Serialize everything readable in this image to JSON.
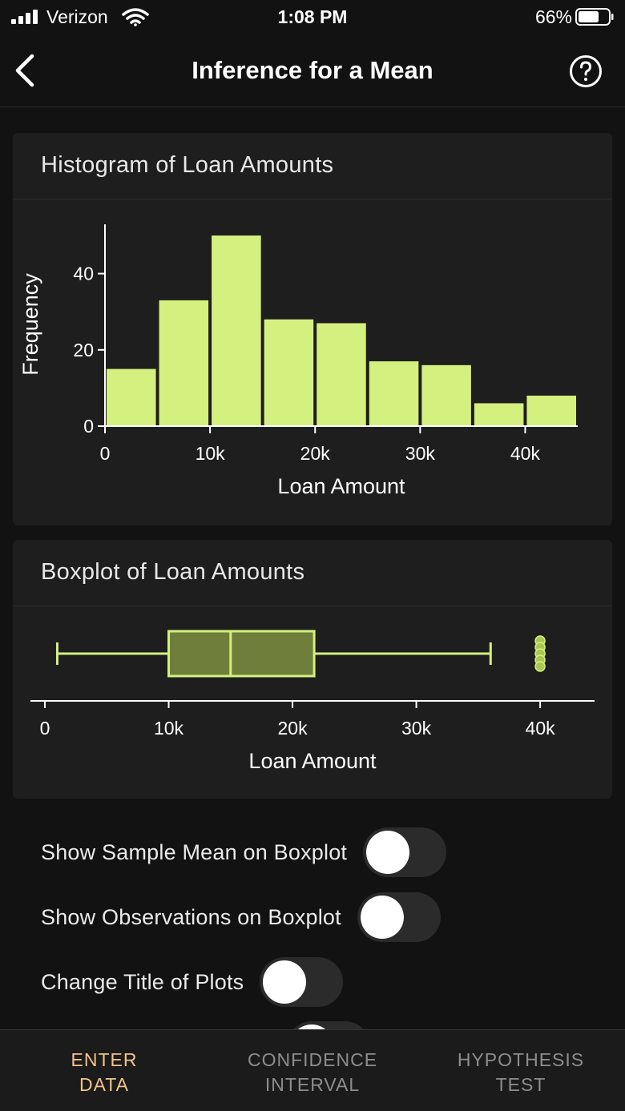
{
  "status_bar": {
    "carrier": "Verizon",
    "time": "1:08 PM",
    "battery": "66%"
  },
  "header": {
    "title": "Inference for a Mean"
  },
  "histogram_card": {
    "title": "Histogram of Loan Amounts"
  },
  "boxplot_card": {
    "title": "Boxplot of Loan Amounts"
  },
  "toggles": [
    {
      "label": "Show Sample Mean on Boxplot",
      "on": false
    },
    {
      "label": "Show Observations on Boxplot",
      "on": false
    },
    {
      "label": "Change Title of Plots",
      "on": false
    }
  ],
  "tabs": [
    {
      "line1": "ENTER",
      "line2": "DATA",
      "active": true
    },
    {
      "line1": "CONFIDENCE",
      "line2": "INTERVAL",
      "active": false
    },
    {
      "line1": "HYPOTHESIS",
      "line2": "TEST",
      "active": false
    }
  ],
  "colors": {
    "accent": "#d4f07f",
    "box_fill": "#6f7e3a",
    "active_tab": "#f1c38a"
  },
  "chart_data": [
    {
      "type": "bar",
      "title": "Histogram of Loan Amounts",
      "xlabel": "Loan Amount",
      "ylabel": "Frequency",
      "bin_edges": [
        0,
        5000,
        10000,
        15000,
        20000,
        25000,
        30000,
        35000,
        40000,
        45000
      ],
      "values": [
        15,
        33,
        50,
        28,
        27,
        17,
        16,
        6,
        8
      ],
      "xlim": [
        0,
        45000
      ],
      "ylim": [
        0,
        50
      ],
      "x_ticks": [
        0,
        10000,
        20000,
        30000,
        40000
      ],
      "x_tick_labels": [
        "0",
        "10k",
        "20k",
        "30k",
        "40k"
      ],
      "y_ticks": [
        0,
        20,
        40
      ],
      "y_tick_labels": [
        "0",
        "20",
        "40"
      ],
      "color": "#d4f07f"
    },
    {
      "type": "boxplot",
      "title": "Boxplot of Loan Amounts",
      "xlabel": "Loan Amount",
      "min": 1000,
      "q1": 10000,
      "median": 15000,
      "q3": 21750,
      "max": 36000,
      "outliers": [
        40000,
        40000,
        40000,
        40000,
        40000
      ],
      "xlim": [
        0,
        42000
      ],
      "x_ticks": [
        0,
        10000,
        20000,
        30000,
        40000
      ],
      "x_tick_labels": [
        "0",
        "10k",
        "20k",
        "30k",
        "40k"
      ],
      "color": "#d4f07f"
    }
  ]
}
